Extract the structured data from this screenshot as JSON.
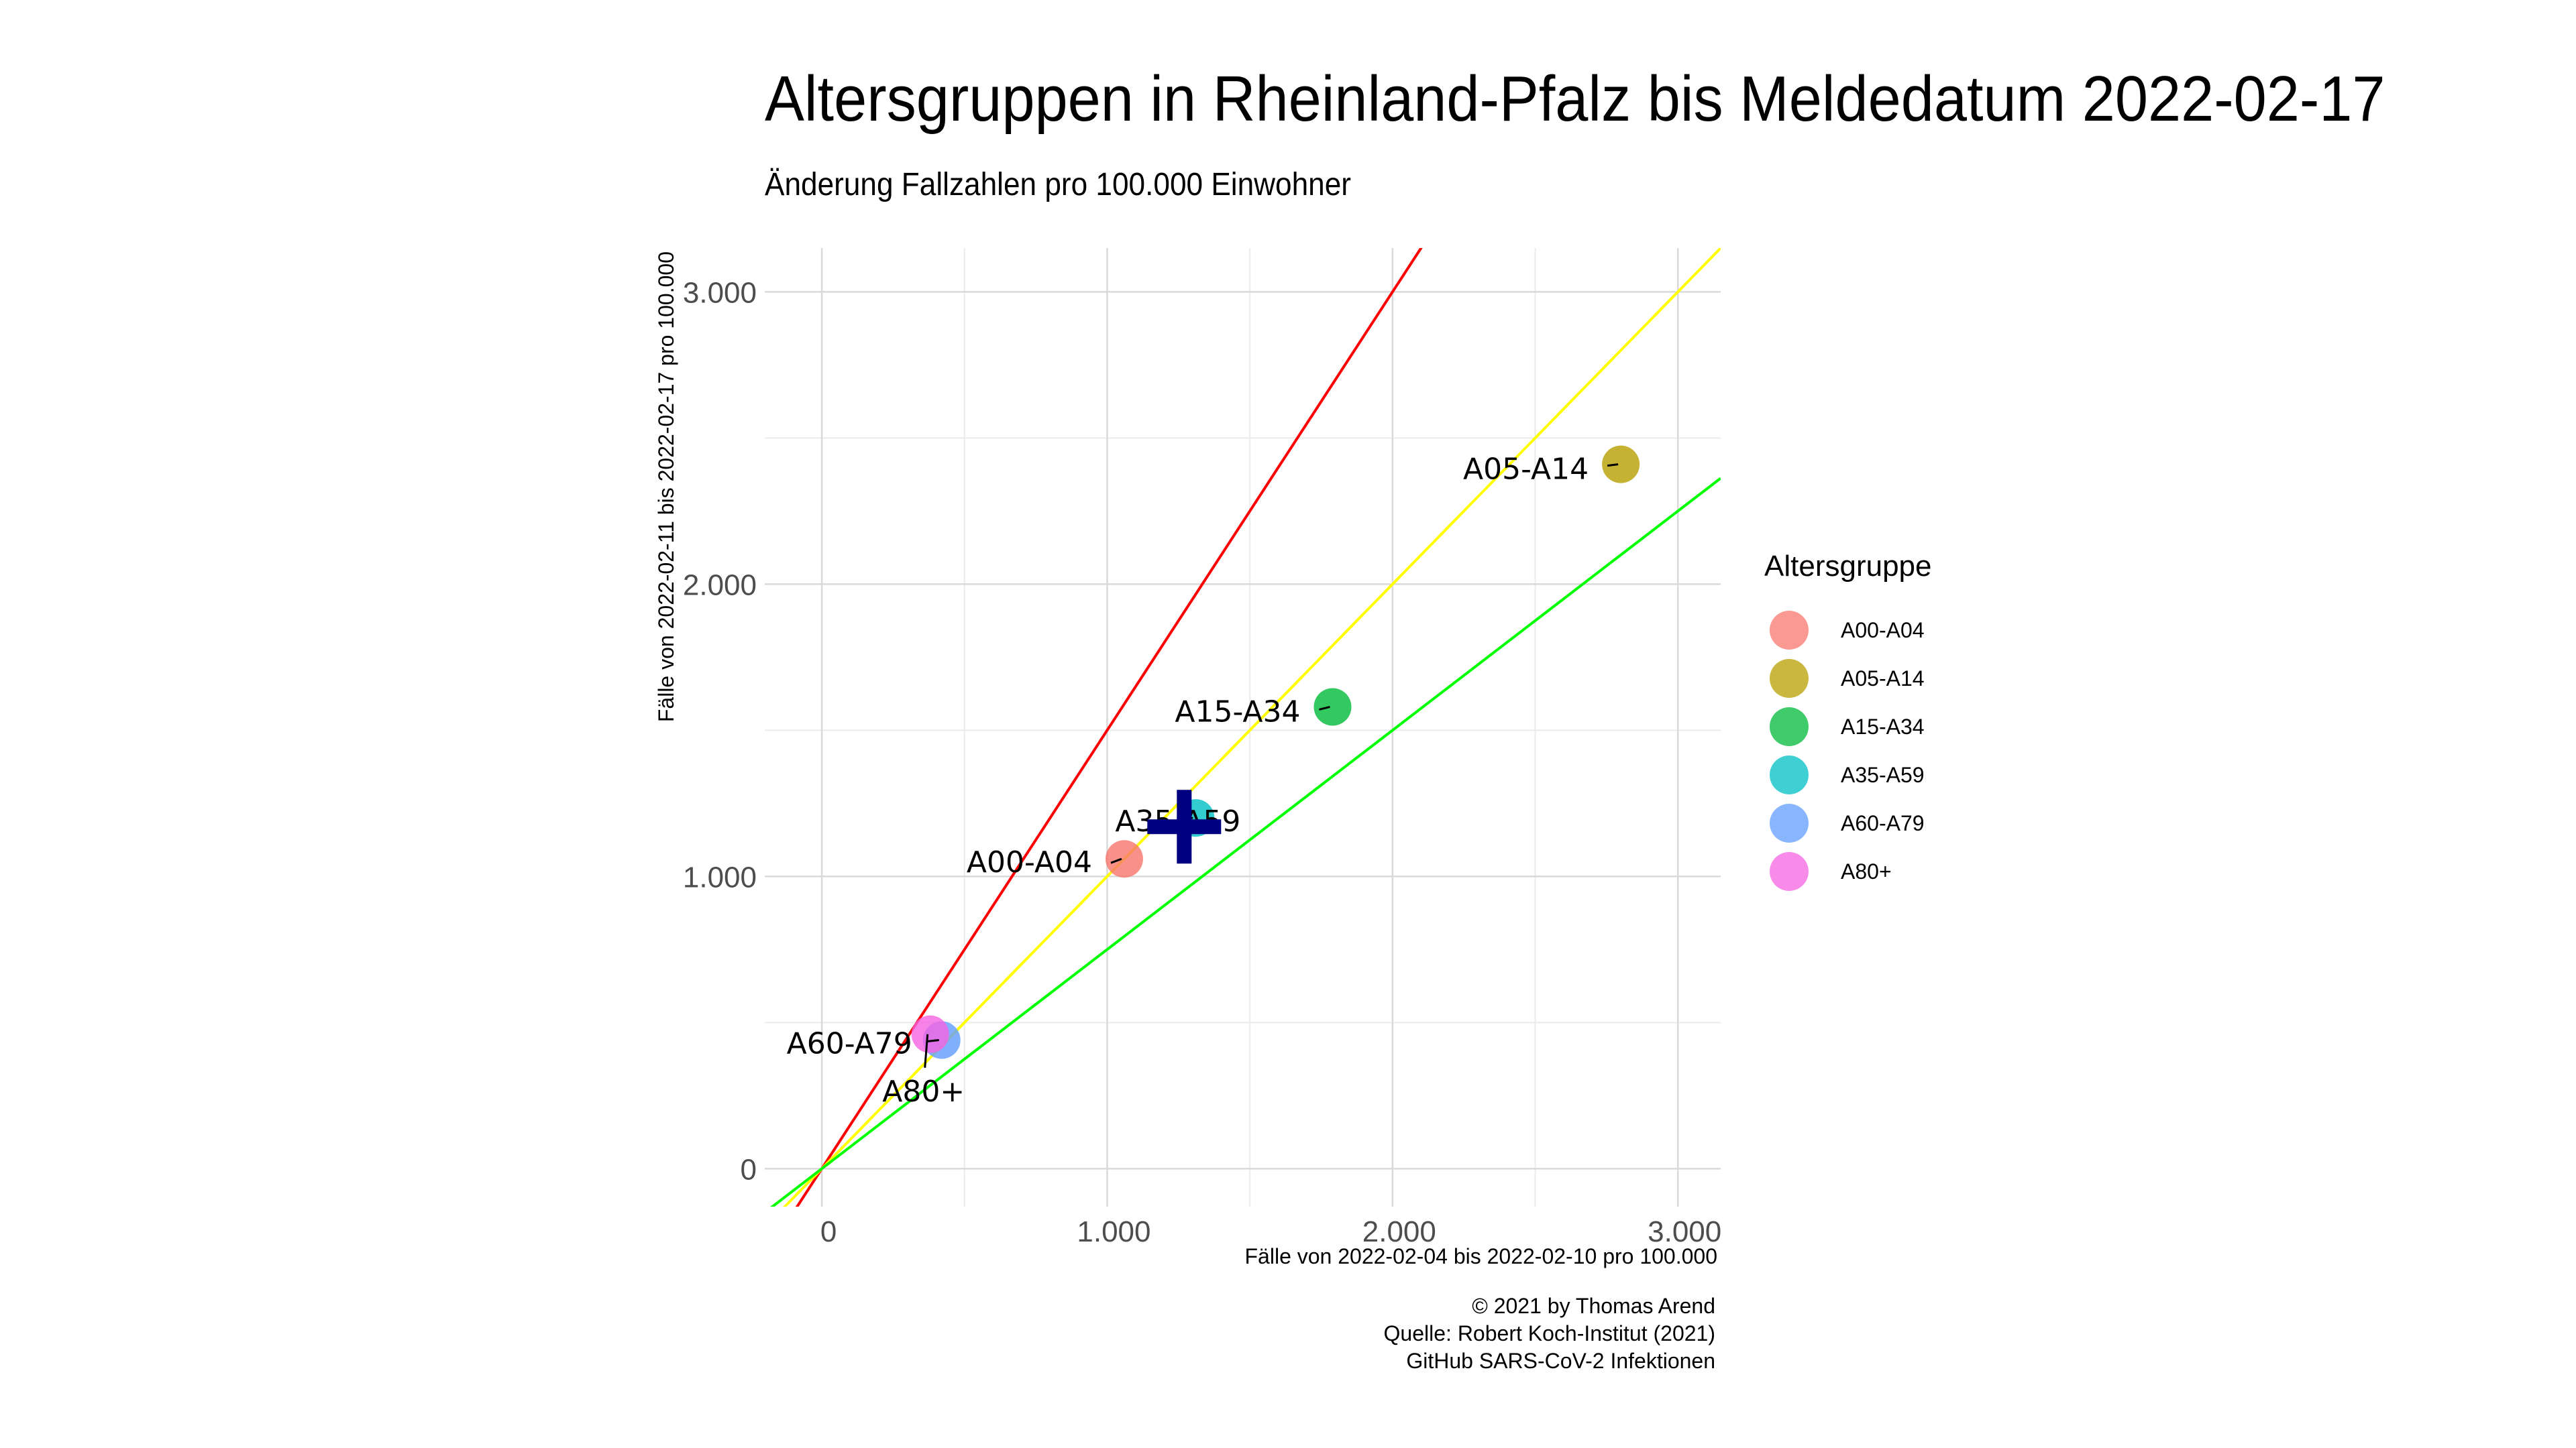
{
  "title": "Altersgruppen in Rheinland-Pfalz bis Meldedatum 2022-02-17",
  "subtitle": "Änderung Fallzahlen pro 100.000 Einwohner",
  "caption": [
    "© 2021 by Thomas Arend",
    "Quelle: Robert Koch-Institut (2021)",
    "GitHub SARS-CoV-2 Infektionen"
  ],
  "legend": {
    "title": "Altersgruppe"
  },
  "chart_data": {
    "type": "scatter",
    "xlabel": "Fälle von 2022-02-04 bis 2022-02-10 pro 100.000",
    "ylabel": "Fälle von 2022-02-11 bis 2022-02-17 pro 100.000",
    "xlim": [
      -200,
      3150
    ],
    "ylim": [
      -130,
      3150
    ],
    "xticks": [
      0,
      1000,
      2000,
      3000
    ],
    "yticks": [
      0,
      1000,
      2000,
      3000
    ],
    "xtick_labels": [
      "0",
      "1.000",
      "2.000",
      "3.000"
    ],
    "ytick_labels": [
      "0",
      "1.000",
      "2.000",
      "3.000"
    ],
    "grid": true,
    "legend_position": "right",
    "series": [
      {
        "name": "A00-A04",
        "x": 1060,
        "y": 1060,
        "color": "#F8766D"
      },
      {
        "name": "A05-A14",
        "x": 2800,
        "y": 2410,
        "color": "#B79F00"
      },
      {
        "name": "A15-A34",
        "x": 1790,
        "y": 1580,
        "color": "#00BA38"
      },
      {
        "name": "A35-A59",
        "x": 1310,
        "y": 1200,
        "color": "#00BFC4"
      },
      {
        "name": "A60-A79",
        "x": 420,
        "y": 440,
        "color": "#619CFF"
      },
      {
        "name": "A80+",
        "x": 380,
        "y": 460,
        "color": "#F564E3"
      }
    ],
    "reference_lines": [
      {
        "slope": 1.5,
        "color": "#FF0000"
      },
      {
        "slope": 1.0,
        "color": "#FFFF00"
      },
      {
        "slope": 0.75,
        "color": "#00FF00"
      }
    ],
    "total_marker": {
      "x": 1270,
      "y": 1170,
      "color": "#000080",
      "shape": "plus"
    }
  }
}
